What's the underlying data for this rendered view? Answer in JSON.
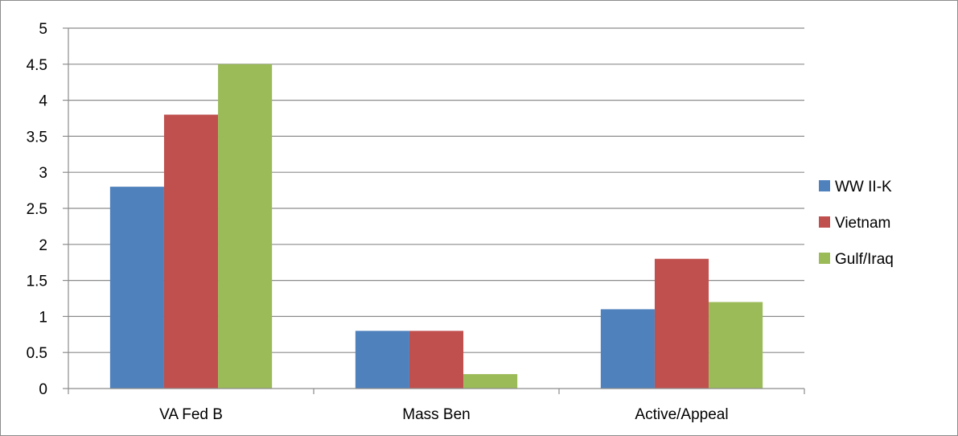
{
  "chart_data": {
    "type": "bar",
    "categories": [
      "VA Fed B",
      "Mass Ben",
      "Active/Appeal"
    ],
    "series": [
      {
        "name": "WW II-K",
        "color": "#4f81bd",
        "values": [
          2.8,
          0.8,
          1.1
        ]
      },
      {
        "name": "Vietnam",
        "color": "#c0504d",
        "values": [
          3.8,
          0.8,
          1.8
        ]
      },
      {
        "name": "Gulf/Iraq",
        "color": "#9bbb59",
        "values": [
          4.5,
          0.2,
          1.2
        ]
      }
    ],
    "y_ticks": [
      "0",
      "0.5",
      "1",
      "1.5",
      "2",
      "2.5",
      "3",
      "3.5",
      "4",
      "4.5",
      "5"
    ],
    "ylim": [
      0,
      5
    ],
    "grid": true,
    "legend_position": "right"
  }
}
